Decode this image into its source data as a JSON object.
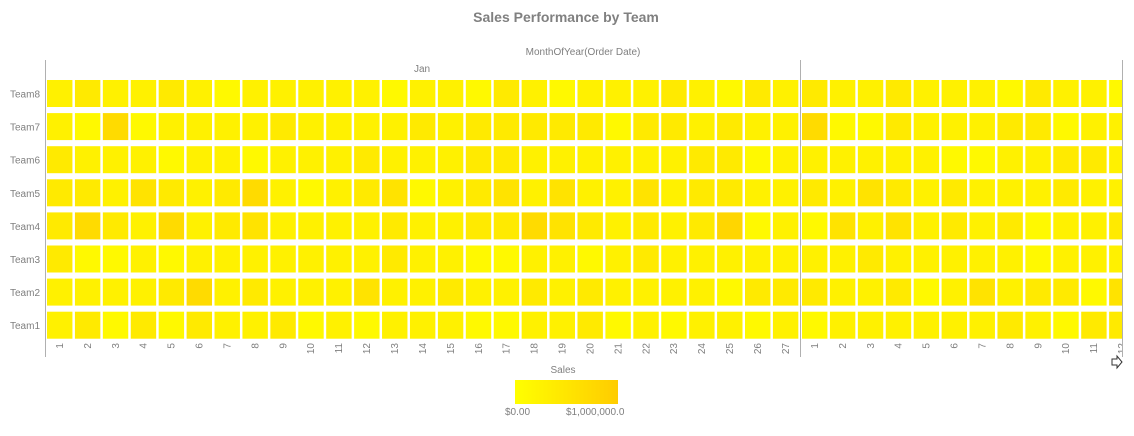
{
  "chart_data": {
    "type": "heatmap",
    "title": "Sales Performance by Team",
    "xlabel": "MonthOfYear(Order Date)",
    "x_groups": [
      {
        "label": "Jan",
        "categories": [
          "1",
          "2",
          "3",
          "4",
          "5",
          "6",
          "7",
          "8",
          "9",
          "10",
          "11",
          "12",
          "13",
          "14",
          "15",
          "16",
          "17",
          "18",
          "19",
          "20",
          "21",
          "22",
          "23",
          "24",
          "25",
          "26",
          "27"
        ]
      },
      {
        "label": "",
        "categories": [
          "1",
          "2",
          "3",
          "4",
          "5",
          "6",
          "7",
          "8",
          "9",
          "10",
          "11",
          "12"
        ]
      }
    ],
    "rows": [
      "Team8",
      "Team7",
      "Team6",
      "Team5",
      "Team4",
      "Team3",
      "Team2",
      "Team1"
    ],
    "values": [
      [
        280000,
        420000,
        280000,
        280000,
        420000,
        280000,
        120000,
        280000,
        280000,
        280000,
        280000,
        280000,
        120000,
        280000,
        280000,
        120000,
        420000,
        280000,
        120000,
        280000,
        280000,
        280000,
        420000,
        280000,
        120000,
        420000,
        280000,
        420000,
        280000,
        280000,
        420000,
        280000,
        280000,
        280000,
        120000,
        420000,
        280000,
        280000,
        120000
      ],
      [
        280000,
        120000,
        700000,
        120000,
        280000,
        280000,
        280000,
        280000,
        420000,
        280000,
        280000,
        280000,
        280000,
        420000,
        280000,
        420000,
        420000,
        420000,
        420000,
        420000,
        120000,
        420000,
        420000,
        280000,
        420000,
        280000,
        280000,
        700000,
        120000,
        120000,
        420000,
        280000,
        280000,
        280000,
        420000,
        420000,
        120000,
        280000,
        280000
      ],
      [
        420000,
        280000,
        280000,
        280000,
        120000,
        280000,
        280000,
        120000,
        280000,
        280000,
        280000,
        420000,
        280000,
        280000,
        280000,
        420000,
        420000,
        280000,
        280000,
        280000,
        280000,
        280000,
        280000,
        420000,
        420000,
        120000,
        280000,
        280000,
        280000,
        280000,
        280000,
        280000,
        120000,
        120000,
        280000,
        280000,
        420000,
        420000,
        280000
      ],
      [
        420000,
        420000,
        280000,
        550000,
        420000,
        280000,
        420000,
        700000,
        280000,
        120000,
        280000,
        420000,
        550000,
        120000,
        280000,
        420000,
        550000,
        280000,
        550000,
        280000,
        280000,
        550000,
        280000,
        420000,
        420000,
        280000,
        280000,
        420000,
        280000,
        550000,
        420000,
        280000,
        420000,
        280000,
        280000,
        280000,
        420000,
        280000,
        280000
      ],
      [
        420000,
        700000,
        420000,
        280000,
        700000,
        280000,
        420000,
        550000,
        280000,
        280000,
        280000,
        280000,
        420000,
        280000,
        280000,
        420000,
        420000,
        700000,
        550000,
        420000,
        280000,
        420000,
        280000,
        420000,
        800000,
        120000,
        280000,
        120000,
        550000,
        280000,
        550000,
        280000,
        420000,
        280000,
        420000,
        120000,
        280000,
        280000,
        420000
      ],
      [
        420000,
        120000,
        120000,
        280000,
        120000,
        280000,
        280000,
        280000,
        280000,
        280000,
        280000,
        280000,
        420000,
        280000,
        280000,
        120000,
        120000,
        280000,
        280000,
        120000,
        280000,
        420000,
        280000,
        280000,
        280000,
        280000,
        280000,
        280000,
        280000,
        420000,
        280000,
        280000,
        280000,
        280000,
        280000,
        120000,
        280000,
        280000,
        280000
      ],
      [
        280000,
        280000,
        280000,
        280000,
        420000,
        700000,
        280000,
        420000,
        280000,
        280000,
        280000,
        550000,
        280000,
        280000,
        420000,
        280000,
        280000,
        420000,
        280000,
        420000,
        280000,
        280000,
        280000,
        280000,
        120000,
        420000,
        420000,
        420000,
        280000,
        280000,
        420000,
        120000,
        280000,
        550000,
        280000,
        420000,
        420000,
        120000,
        550000
      ],
      [
        280000,
        420000,
        120000,
        420000,
        120000,
        420000,
        280000,
        280000,
        420000,
        120000,
        280000,
        120000,
        280000,
        280000,
        280000,
        120000,
        120000,
        280000,
        280000,
        420000,
        120000,
        280000,
        120000,
        280000,
        280000,
        120000,
        280000,
        120000,
        280000,
        280000,
        280000,
        280000,
        280000,
        280000,
        420000,
        280000,
        120000,
        420000,
        420000
      ]
    ],
    "color_scale": {
      "title": "Sales",
      "min": 0,
      "max": 1000000,
      "min_label": "$0.00",
      "max_label": "$1,000,000.0",
      "min_color": "#ffff00",
      "max_color": "#ffcc00"
    },
    "grid": false,
    "legend_position": "bottom"
  }
}
